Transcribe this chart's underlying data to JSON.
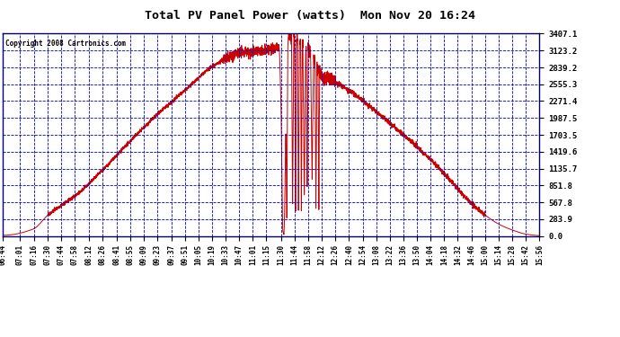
{
  "title": "Total PV Panel Power (watts)  Mon Nov 20 16:24",
  "copyright": "Copyright 2008 Cartronics.com",
  "background_color": "#ffffff",
  "fig_bg_color": "#ffffff",
  "line_color": "#cc0000",
  "grid_color": "#0000cc",
  "y_max": 3407.1,
  "y_min": 0.0,
  "y_ticks": [
    0.0,
    283.9,
    567.8,
    851.8,
    1135.7,
    1419.6,
    1703.5,
    1987.5,
    2271.4,
    2555.3,
    2839.2,
    3123.2,
    3407.1
  ],
  "x_labels": [
    "06:44",
    "07:01",
    "07:16",
    "07:30",
    "07:44",
    "07:58",
    "08:12",
    "08:26",
    "08:41",
    "08:55",
    "09:09",
    "09:23",
    "09:37",
    "09:51",
    "10:05",
    "10:19",
    "10:33",
    "10:47",
    "11:01",
    "11:15",
    "11:30",
    "11:44",
    "11:58",
    "12:12",
    "12:26",
    "12:40",
    "12:54",
    "13:08",
    "13:22",
    "13:36",
    "13:50",
    "14:04",
    "14:18",
    "14:32",
    "14:46",
    "15:00",
    "15:14",
    "15:28",
    "15:42",
    "15:56"
  ]
}
